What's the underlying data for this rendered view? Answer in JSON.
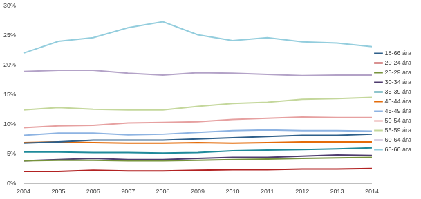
{
  "chart_data": {
    "type": "line",
    "categories": [
      "2004",
      "2005",
      "2006",
      "2007",
      "2008",
      "2009",
      "2010",
      "2011",
      "2012",
      "2013",
      "2014"
    ],
    "series": [
      {
        "name": "18-66 ára",
        "color": "#2e5f8a",
        "values": [
          6.8,
          7.0,
          7.3,
          7.3,
          7.3,
          7.5,
          7.7,
          7.9,
          8.1,
          8.1,
          8.3
        ]
      },
      {
        "name": "20-24 ára",
        "color": "#b22222",
        "values": [
          2.0,
          2.0,
          2.2,
          2.1,
          2.1,
          2.2,
          2.3,
          2.3,
          2.4,
          2.4,
          2.5
        ]
      },
      {
        "name": "25-29 ára",
        "color": "#77933c",
        "values": [
          3.8,
          3.9,
          3.9,
          3.8,
          3.8,
          3.9,
          4.0,
          4.1,
          4.2,
          4.3,
          4.4
        ]
      },
      {
        "name": "30-34 ára",
        "color": "#4e3b6e",
        "values": [
          3.8,
          4.0,
          4.2,
          4.0,
          4.0,
          4.2,
          4.4,
          4.4,
          4.6,
          4.8,
          4.7
        ]
      },
      {
        "name": "35-39 ára",
        "color": "#1f8a9a",
        "values": [
          5.3,
          5.3,
          5.2,
          5.2,
          5.1,
          5.2,
          5.5,
          5.6,
          5.7,
          5.8,
          6.0
        ]
      },
      {
        "name": "40-44 ára",
        "color": "#e46c0a",
        "values": [
          6.9,
          7.0,
          6.9,
          6.8,
          6.8,
          6.9,
          6.8,
          6.9,
          7.0,
          7.0,
          7.0
        ]
      },
      {
        "name": "45-49 ára",
        "color": "#8db3e2",
        "values": [
          8.1,
          8.5,
          8.5,
          8.2,
          8.3,
          8.6,
          8.9,
          9.0,
          8.9,
          8.9,
          8.8
        ]
      },
      {
        "name": "50-54 ára",
        "color": "#e6a0a0",
        "values": [
          9.4,
          9.7,
          9.8,
          10.2,
          10.3,
          10.4,
          10.8,
          11.0,
          11.2,
          11.1,
          11.1
        ]
      },
      {
        "name": "55-59 ára",
        "color": "#c4d79b",
        "values": [
          12.4,
          12.8,
          12.5,
          12.4,
          12.4,
          13.0,
          13.5,
          13.7,
          14.2,
          14.3,
          14.5
        ]
      },
      {
        "name": "60-64 ára",
        "color": "#b3a2c7",
        "values": [
          18.9,
          19.1,
          19.1,
          18.6,
          18.3,
          18.7,
          18.6,
          18.4,
          18.2,
          18.3,
          18.3
        ]
      },
      {
        "name": "65-66 ára",
        "color": "#93cddd",
        "values": [
          22.0,
          24.0,
          24.6,
          26.3,
          27.3,
          25.1,
          24.1,
          24.6,
          23.9,
          23.7,
          23.1
        ]
      }
    ],
    "ylim": [
      0,
      30
    ],
    "yticks": [
      {
        "value": 0,
        "label": "0%"
      },
      {
        "value": 5,
        "label": "5%"
      },
      {
        "value": 10,
        "label": "10%"
      },
      {
        "value": 15,
        "label": "15%"
      },
      {
        "value": 20,
        "label": "20%"
      },
      {
        "value": 25,
        "label": "25%"
      },
      {
        "value": 30,
        "label": "30%"
      }
    ],
    "grid": false,
    "legend": "right"
  }
}
